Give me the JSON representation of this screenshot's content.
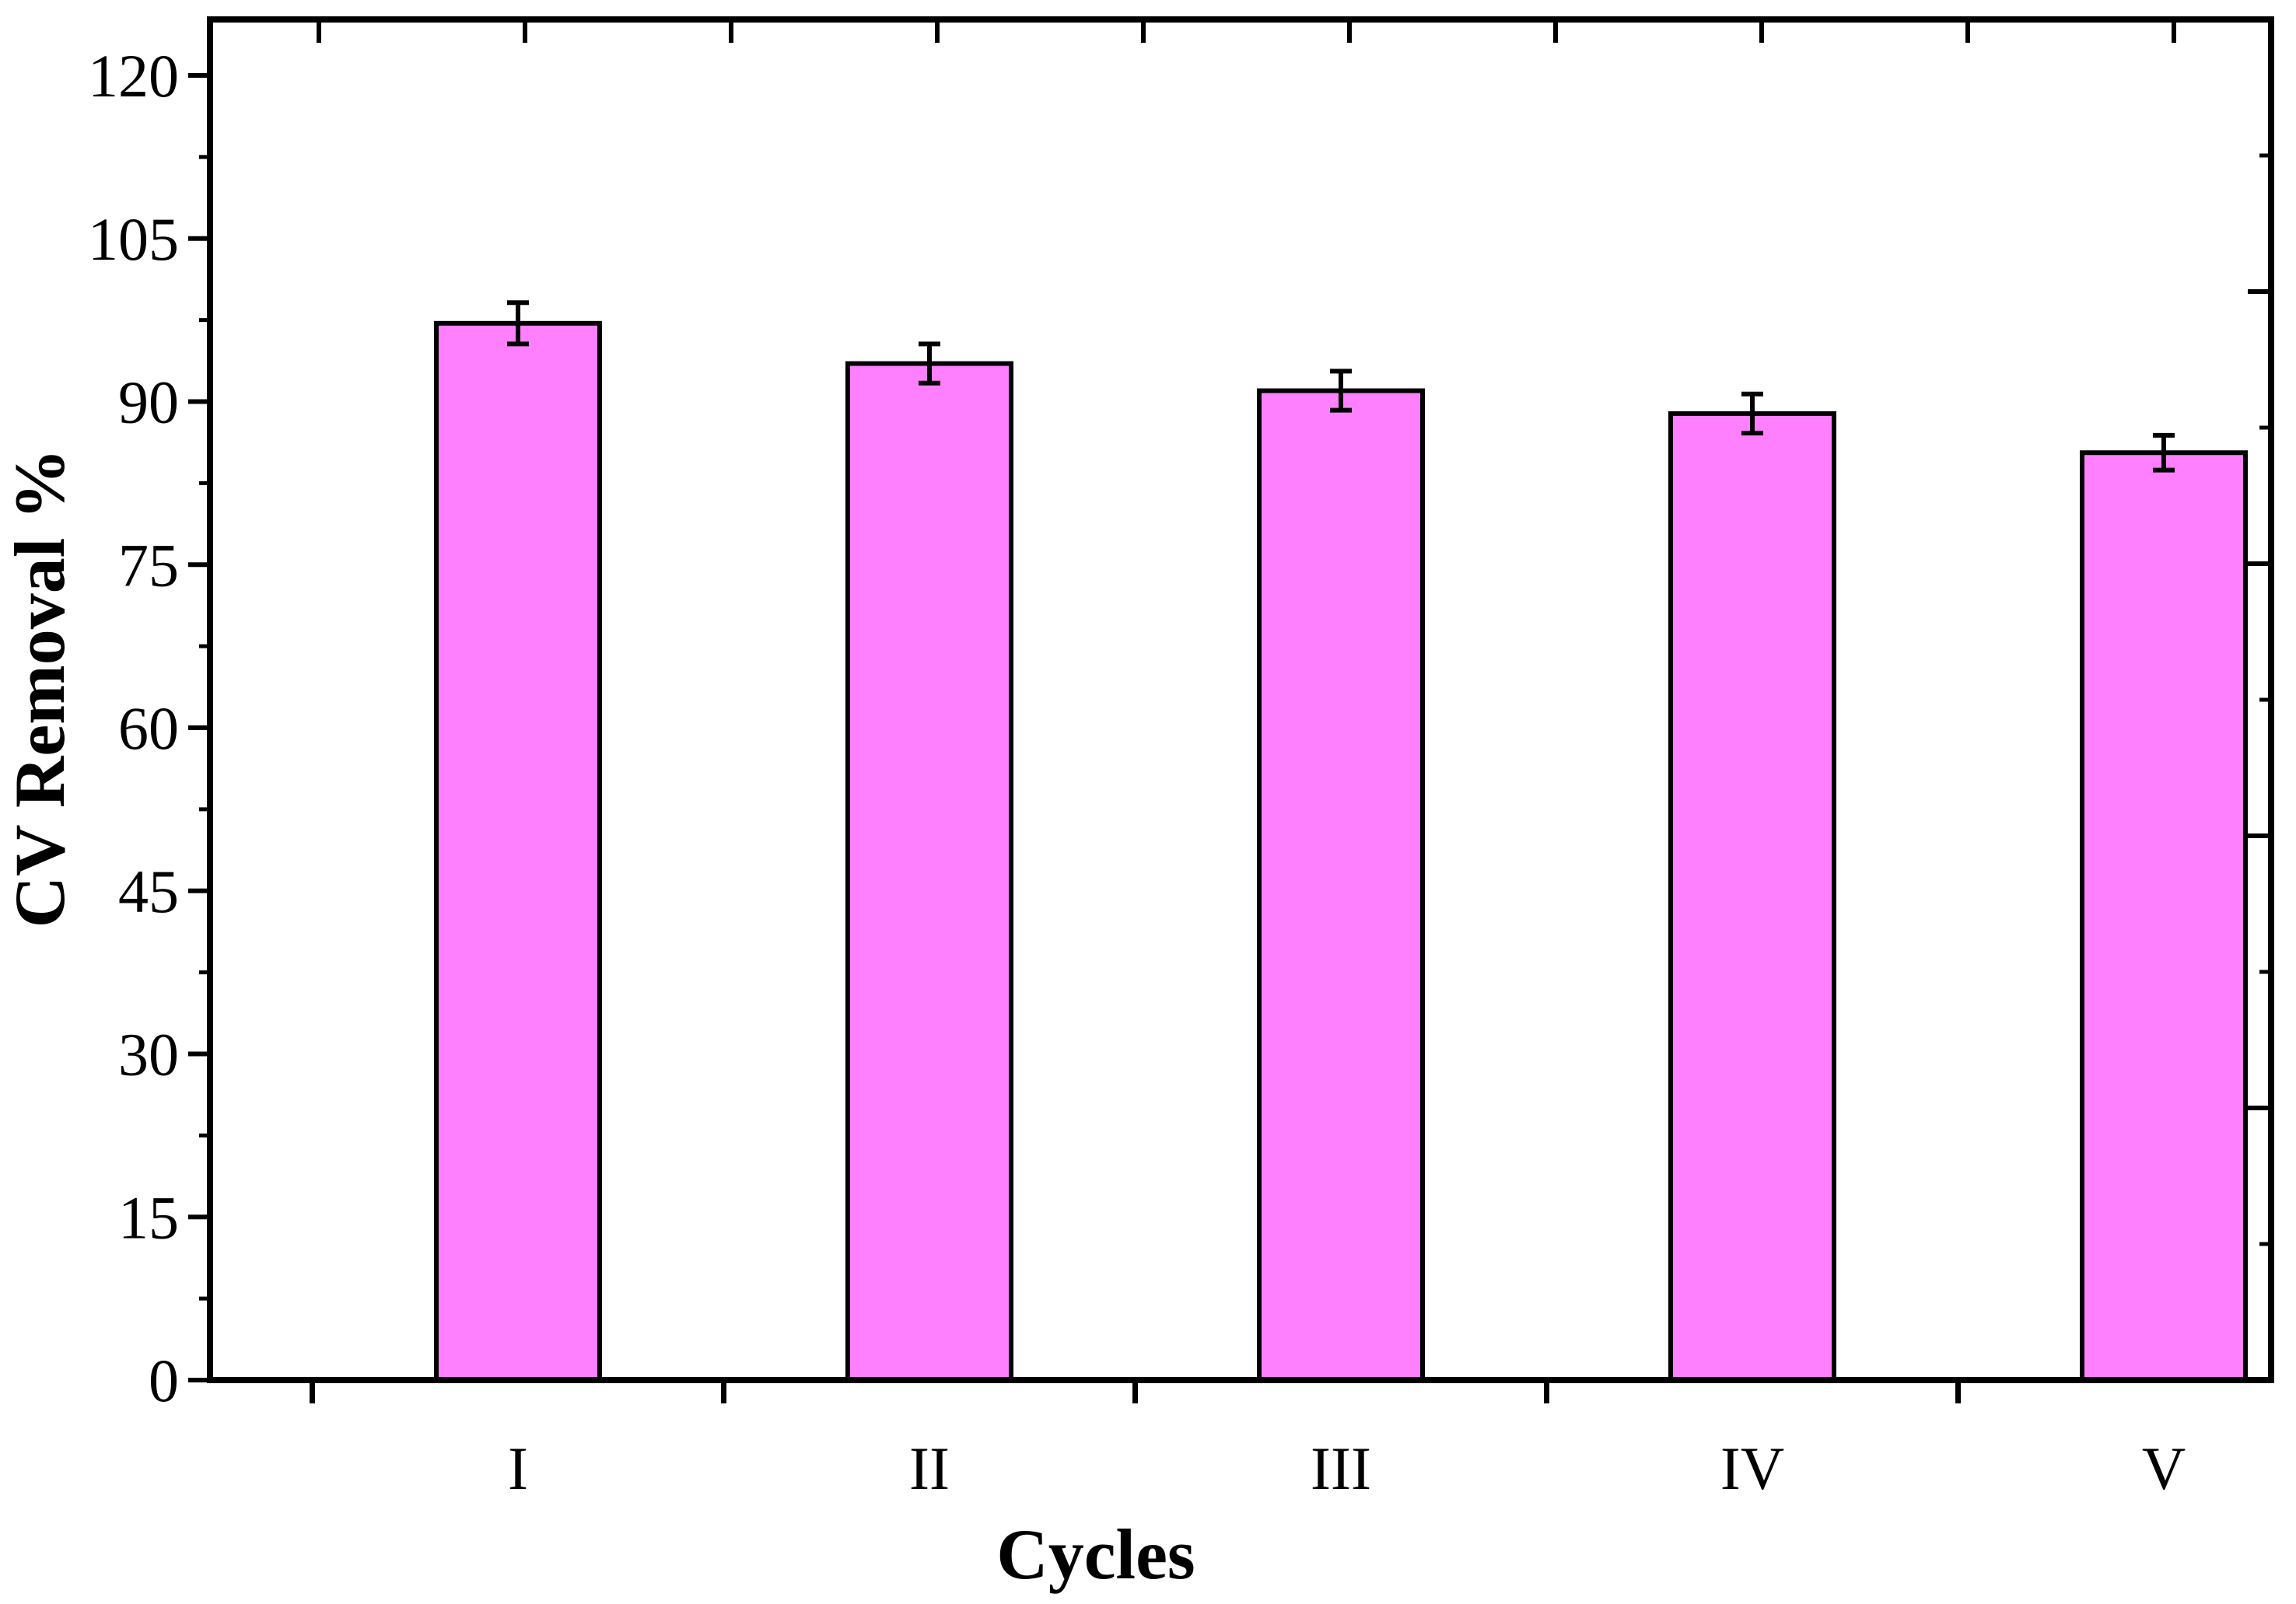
{
  "chart_data": {
    "type": "bar",
    "title": "",
    "xlabel": "Cycles",
    "ylabel": "CV Removal %",
    "categories": [
      "I",
      "II",
      "III",
      "IV",
      "V"
    ],
    "values": [
      97.2,
      93.5,
      91.0,
      88.9,
      85.3
    ],
    "errors": [
      1.9,
      1.8,
      1.8,
      1.8,
      1.6
    ],
    "ylim": [
      0,
      120
    ],
    "yticks": [
      "0",
      "15",
      "30",
      "45",
      "60",
      "75",
      "90",
      "105",
      "120"
    ],
    "grid": false,
    "bar_color": "#FF80FF",
    "edge_color": "#000000"
  }
}
